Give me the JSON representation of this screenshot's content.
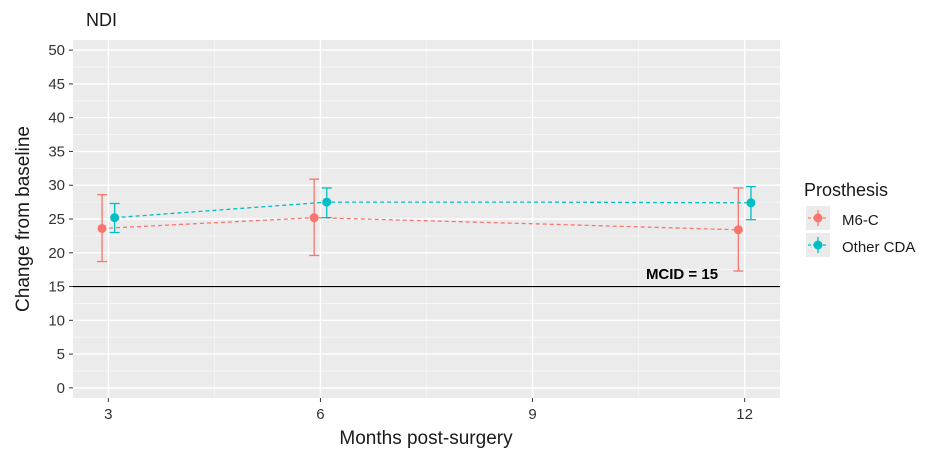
{
  "chart_data": {
    "type": "line",
    "title": "NDI",
    "xlabel": "Months post-surgery",
    "ylabel": "Change from baseline",
    "x": [
      3,
      6,
      9,
      12
    ],
    "x_ticks": [
      "3",
      "6",
      "9",
      "12"
    ],
    "y_ticks": [
      "0",
      "5",
      "10",
      "15",
      "20",
      "25",
      "30",
      "35",
      "40",
      "45",
      "50"
    ],
    "xlim": [
      2.5,
      12.5
    ],
    "ylim": [
      -1.5,
      51.5
    ],
    "grid": true,
    "legend_title": "Prosthesis",
    "legend_position": "right",
    "series": [
      {
        "name": "M6-C",
        "color": "#F8766D",
        "mean": [
          23.6,
          25.2,
          24.3,
          23.4
        ],
        "points_x": [
          3,
          6,
          12
        ],
        "points_y": [
          23.6,
          25.2,
          23.4
        ],
        "error_low": [
          18.7,
          19.6,
          17.3
        ],
        "error_high": [
          28.6,
          30.9,
          29.6
        ]
      },
      {
        "name": "Other CDA",
        "color": "#00BFC4",
        "mean": [
          25.2,
          27.5,
          27.5,
          27.4
        ],
        "points_x": [
          3,
          6,
          12
        ],
        "points_y": [
          25.2,
          27.5,
          27.4
        ],
        "error_low": [
          23.0,
          25.2,
          24.9
        ],
        "error_high": [
          27.3,
          29.6,
          29.8
        ]
      }
    ],
    "reference_line": {
      "y": 15,
      "label": "MCID = 15"
    }
  }
}
